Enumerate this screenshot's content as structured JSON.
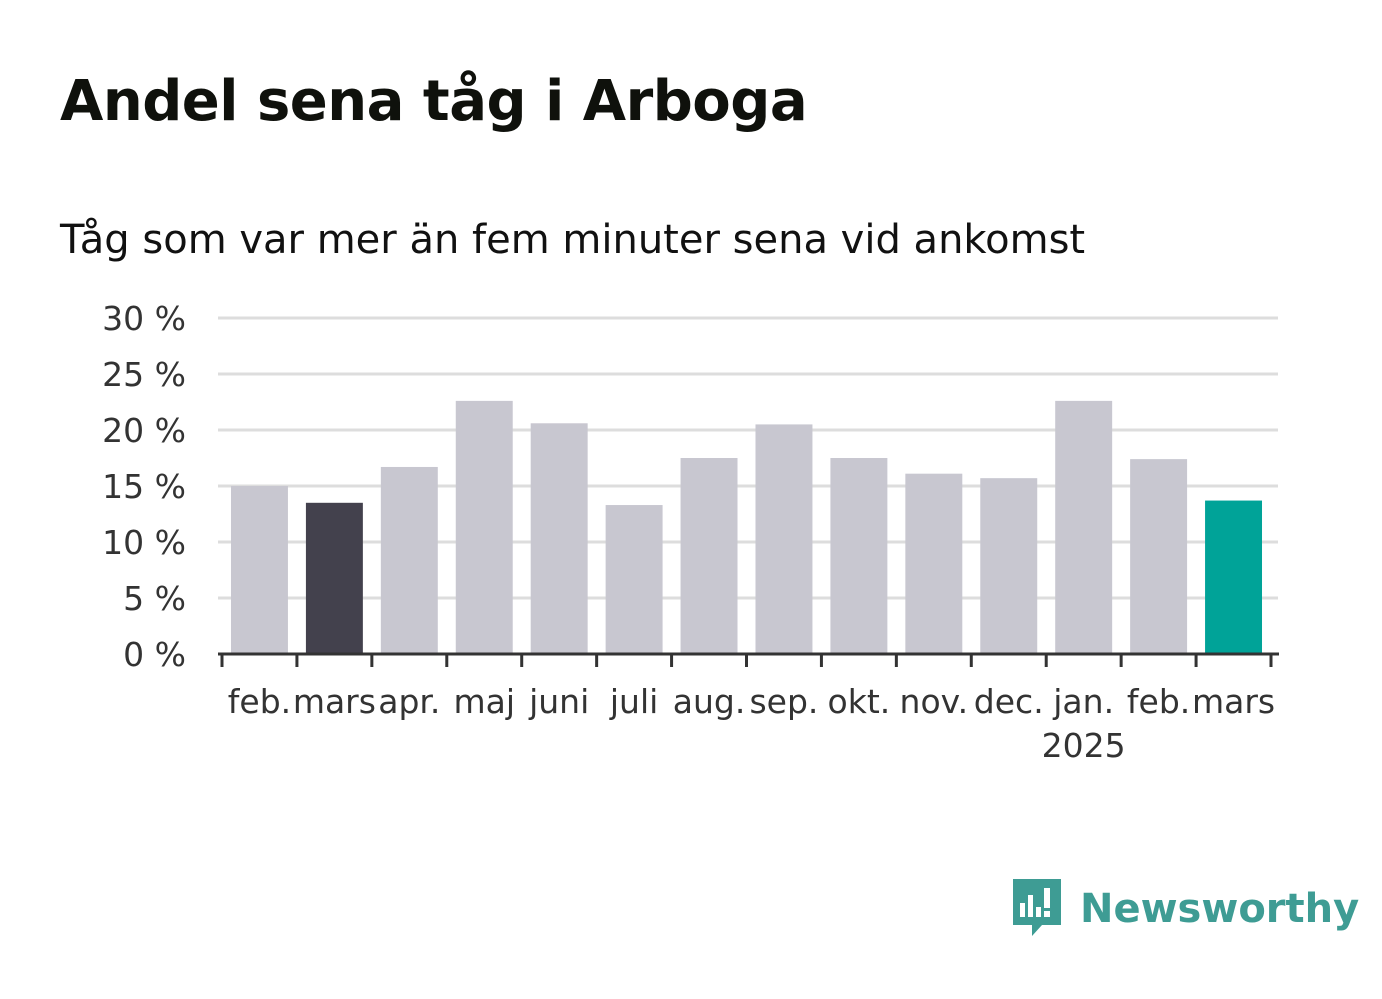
{
  "title": "Andel sena tåg i Arboga",
  "subtitle": "Tåg som var mer än fem minuter sena vid ankomst",
  "brand": {
    "name": "Newsworthy",
    "icon": "newsworthy-logo-icon",
    "color": "#3e9c94"
  },
  "colors": {
    "default": "#c8c7d0",
    "previous_year": "#43414d",
    "latest": "#00a398",
    "grid": "#dddddd",
    "axis": "#333333"
  },
  "chart_data": {
    "type": "bar",
    "title": "Andel sena tåg i Arboga",
    "subtitle": "Tåg som var mer än fem minuter sena vid ankomst",
    "xlabel": "",
    "ylabel": "",
    "ylim": [
      0,
      30
    ],
    "yticks": [
      0,
      5,
      10,
      15,
      20,
      25,
      30
    ],
    "ytick_labels": [
      "0 %",
      "5 %",
      "10 %",
      "15 %",
      "20 %",
      "25 %",
      "30 %"
    ],
    "grid": true,
    "categories": [
      "feb.",
      "mars",
      "apr.",
      "maj",
      "juni",
      "juli",
      "aug.",
      "sep.",
      "okt.",
      "nov.",
      "dec.",
      "jan.",
      "feb.",
      "mars"
    ],
    "category_sublabels": [
      "",
      "",
      "",
      "",
      "",
      "",
      "",
      "",
      "",
      "",
      "",
      "2025",
      "",
      ""
    ],
    "values": [
      15.0,
      13.5,
      16.7,
      22.6,
      20.6,
      13.3,
      17.5,
      20.5,
      17.5,
      16.1,
      15.7,
      22.6,
      17.4,
      13.7
    ],
    "bar_colors": [
      "default",
      "previous_year",
      "default",
      "default",
      "default",
      "default",
      "default",
      "default",
      "default",
      "default",
      "default",
      "default",
      "default",
      "latest"
    ]
  }
}
